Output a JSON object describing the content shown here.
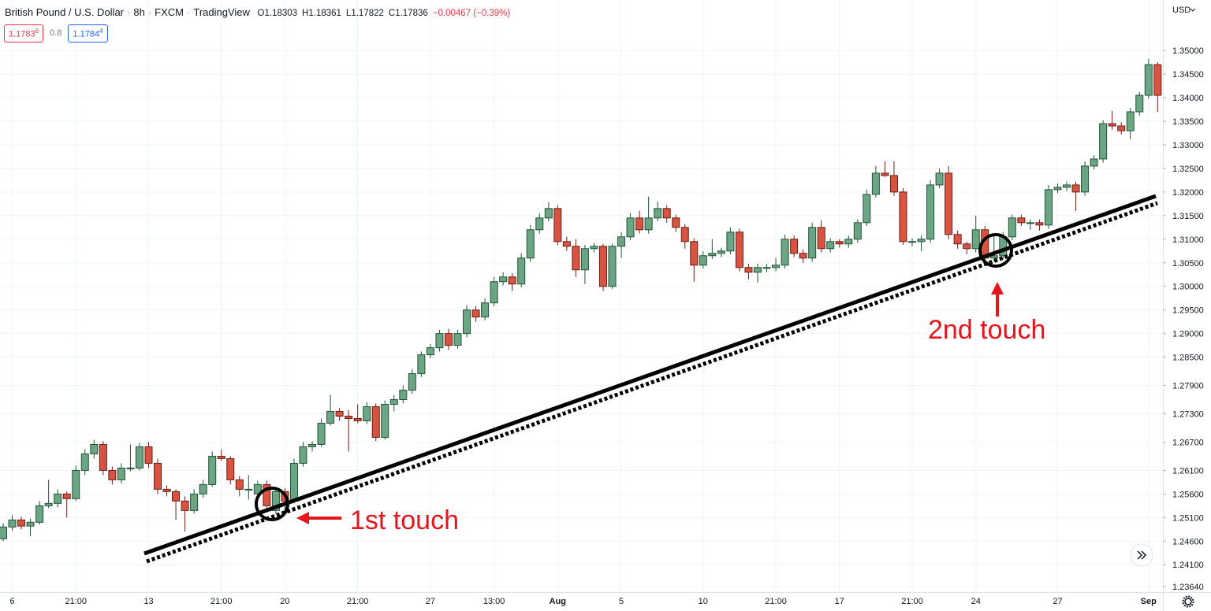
{
  "header": {
    "symbol": "British Pound / U.S. Dollar",
    "interval": "8h",
    "source": "FXCM",
    "platform": "TradingView",
    "open": "O1.18303",
    "high": "H1.18361",
    "low": "L1.17822",
    "close": "C1.17836",
    "change": "−0.00467 (−0.39%)",
    "sell": {
      "price": "1.1783",
      "pip": "6"
    },
    "spread": "0.8",
    "buy": {
      "price": "1.1784",
      "pip": "4"
    },
    "currency": "USD"
  },
  "chart_data": {
    "type": "candlestick",
    "up_color": "#6ba583",
    "down_color": "#d75442",
    "grid": true,
    "annotations": [
      "1st touch",
      "2nd touch"
    ],
    "ylim": [
      1.2352,
      1.3607
    ],
    "yticks": [
      {
        "value": 1.35,
        "label": "1.35000"
      },
      {
        "value": 1.345,
        "label": "1.34500"
      },
      {
        "value": 1.34,
        "label": "1.34000"
      },
      {
        "value": 1.335,
        "label": "1.33500"
      },
      {
        "value": 1.33,
        "label": "1.33000"
      },
      {
        "value": 1.325,
        "label": "1.32500"
      },
      {
        "value": 1.32,
        "label": "1.32000"
      },
      {
        "value": 1.315,
        "label": "1.31500"
      },
      {
        "value": 1.31,
        "label": "1.31000"
      },
      {
        "value": 1.305,
        "label": "1.30500"
      },
      {
        "value": 1.3,
        "label": "1.30000"
      },
      {
        "value": 1.295,
        "label": "1.29500"
      },
      {
        "value": 1.29,
        "label": "1.29000"
      },
      {
        "value": 1.285,
        "label": "1.28500"
      },
      {
        "value": 1.279,
        "label": "1.27900"
      },
      {
        "value": 1.273,
        "label": "1.27300"
      },
      {
        "value": 1.267,
        "label": "1.26700"
      },
      {
        "value": 1.261,
        "label": "1.26100"
      },
      {
        "value": 1.256,
        "label": "1.25600"
      },
      {
        "value": 1.251,
        "label": "1.25100"
      },
      {
        "value": 1.246,
        "label": "1.24600"
      },
      {
        "value": 1.241,
        "label": "1.24100"
      },
      {
        "value": 1.2364,
        "label": "1.23640"
      }
    ],
    "categories": [
      null,
      "6",
      null,
      null,
      null,
      null,
      null,
      null,
      "21:00",
      null,
      null,
      null,
      null,
      null,
      null,
      null,
      "13",
      null,
      null,
      null,
      null,
      null,
      null,
      null,
      "21:00",
      null,
      null,
      null,
      null,
      null,
      null,
      "20",
      null,
      null,
      null,
      null,
      null,
      null,
      null,
      "21:00",
      null,
      null,
      null,
      null,
      null,
      null,
      null,
      "27",
      null,
      null,
      null,
      null,
      null,
      null,
      "13:00",
      null,
      null,
      null,
      null,
      null,
      null,
      "Aug",
      null,
      null,
      null,
      null,
      null,
      null,
      "5",
      null,
      null,
      null,
      null,
      null,
      null,
      null,
      null,
      "10",
      null,
      null,
      null,
      null,
      null,
      null,
      null,
      "21:00",
      null,
      null,
      null,
      null,
      null,
      null,
      "17",
      null,
      null,
      null,
      null,
      null,
      null,
      null,
      "21:00",
      null,
      null,
      null,
      null,
      null,
      null,
      "24",
      null,
      null,
      null,
      null,
      null,
      null,
      null,
      null,
      "27",
      null,
      null,
      null,
      null,
      null,
      null,
      null,
      null,
      null,
      "Sep",
      null
    ],
    "ohlc": [
      [
        1.2465,
        1.2498,
        1.246,
        1.249
      ],
      [
        1.249,
        1.2515,
        1.2482,
        1.2505
      ],
      [
        1.2505,
        1.2512,
        1.2485,
        1.2492
      ],
      [
        1.2492,
        1.2508,
        1.247,
        1.25
      ],
      [
        1.25,
        1.2545,
        1.2495,
        1.2535
      ],
      [
        1.2535,
        1.259,
        1.253,
        1.254
      ],
      [
        1.254,
        1.257,
        1.2532,
        1.256
      ],
      [
        1.256,
        1.2565,
        1.251,
        1.255
      ],
      [
        1.255,
        1.262,
        1.2545,
        1.261
      ],
      [
        1.261,
        1.2655,
        1.26,
        1.2645
      ],
      [
        1.2645,
        1.2675,
        1.2635,
        1.2665
      ],
      [
        1.2665,
        1.2672,
        1.26,
        1.261
      ],
      [
        1.261,
        1.2618,
        1.258,
        1.259
      ],
      [
        1.259,
        1.2625,
        1.2582,
        1.2615
      ],
      [
        1.2615,
        1.2665,
        1.2608,
        1.2615
      ],
      [
        1.2615,
        1.2668,
        1.261,
        1.266
      ],
      [
        1.266,
        1.267,
        1.2615,
        1.2625
      ],
      [
        1.2625,
        1.2635,
        1.256,
        1.257
      ],
      [
        1.257,
        1.2578,
        1.2555,
        1.2565
      ],
      [
        1.2565,
        1.257,
        1.2505,
        1.2545
      ],
      [
        1.2545,
        1.2555,
        1.248,
        1.2525
      ],
      [
        1.2525,
        1.257,
        1.2518,
        1.256
      ],
      [
        1.256,
        1.259,
        1.2552,
        1.258
      ],
      [
        1.258,
        1.265,
        1.2575,
        1.264
      ],
      [
        1.264,
        1.2655,
        1.263,
        1.2635
      ],
      [
        1.2635,
        1.264,
        1.258,
        1.259
      ],
      [
        1.259,
        1.2598,
        1.2555,
        1.257
      ],
      [
        1.257,
        1.26,
        1.2548,
        1.257
      ],
      [
        1.256,
        1.2588,
        1.2552,
        1.258
      ],
      [
        1.258,
        1.2588,
        1.2528,
        1.2535
      ],
      [
        1.2525,
        1.2575,
        1.2518,
        1.2565
      ],
      [
        1.2565,
        1.2572,
        1.252,
        1.2545
      ],
      [
        1.2545,
        1.2635,
        1.254,
        1.2625
      ],
      [
        1.2625,
        1.267,
        1.2618,
        1.266
      ],
      [
        1.266,
        1.2672,
        1.265,
        1.2665
      ],
      [
        1.2665,
        1.272,
        1.266,
        1.271
      ],
      [
        1.271,
        1.277,
        1.2705,
        1.2735
      ],
      [
        1.2735,
        1.2742,
        1.2715,
        1.2725
      ],
      [
        1.2725,
        1.2738,
        1.265,
        1.272
      ],
      [
        1.272,
        1.275,
        1.271,
        1.2715
      ],
      [
        1.2715,
        1.2755,
        1.2708,
        1.2745
      ],
      [
        1.2745,
        1.2752,
        1.2672,
        1.268
      ],
      [
        1.268,
        1.2758,
        1.2675,
        1.275
      ],
      [
        1.275,
        1.277,
        1.2735,
        1.276
      ],
      [
        1.276,
        1.279,
        1.2752,
        1.278
      ],
      [
        1.278,
        1.2825,
        1.2772,
        1.2815
      ],
      [
        1.2815,
        1.2862,
        1.2808,
        1.2855
      ],
      [
        1.2855,
        1.2878,
        1.2848,
        1.287
      ],
      [
        1.287,
        1.2908,
        1.2862,
        1.29
      ],
      [
        1.29,
        1.291,
        1.2865,
        1.2875
      ],
      [
        1.2875,
        1.2908,
        1.2868,
        1.29
      ],
      [
        1.29,
        1.296,
        1.2892,
        1.295
      ],
      [
        1.295,
        1.2958,
        1.2925,
        1.2935
      ],
      [
        1.2935,
        1.2975,
        1.2928,
        1.2965
      ],
      [
        1.2965,
        1.302,
        1.2958,
        1.301
      ],
      [
        1.301,
        1.303,
        1.3002,
        1.302
      ],
      [
        1.302,
        1.3028,
        1.299,
        1.3005
      ],
      [
        1.3005,
        1.307,
        1.2998,
        1.306
      ],
      [
        1.306,
        1.313,
        1.3052,
        1.312
      ],
      [
        1.312,
        1.3155,
        1.3112,
        1.3145
      ],
      [
        1.3145,
        1.3178,
        1.3138,
        1.3165
      ],
      [
        1.3165,
        1.3172,
        1.3088,
        1.3095
      ],
      [
        1.3095,
        1.3105,
        1.3075,
        1.3085
      ],
      [
        1.3085,
        1.31,
        1.302,
        1.3035
      ],
      [
        1.3035,
        1.3088,
        1.3005,
        1.308
      ],
      [
        1.308,
        1.3092,
        1.3072,
        1.3085
      ],
      [
        1.3085,
        1.309,
        1.299,
        1.3
      ],
      [
        1.3,
        1.309,
        1.2995,
        1.3085
      ],
      [
        1.3085,
        1.3115,
        1.306,
        1.3105
      ],
      [
        1.3105,
        1.3155,
        1.3098,
        1.3145
      ],
      [
        1.3145,
        1.316,
        1.3112,
        1.312
      ],
      [
        1.312,
        1.319,
        1.3112,
        1.3145
      ],
      [
        1.3145,
        1.318,
        1.3138,
        1.3165
      ],
      [
        1.3165,
        1.3172,
        1.3135,
        1.3145
      ],
      [
        1.3145,
        1.3152,
        1.3115,
        1.3125
      ],
      [
        1.3125,
        1.3132,
        1.308,
        1.3095
      ],
      [
        1.3095,
        1.3102,
        1.301,
        1.3045
      ],
      [
        1.3045,
        1.3075,
        1.3038,
        1.3065
      ],
      [
        1.3065,
        1.31,
        1.3058,
        1.307
      ],
      [
        1.307,
        1.3082,
        1.3062,
        1.3075
      ],
      [
        1.3075,
        1.3125,
        1.3068,
        1.3115
      ],
      [
        1.3115,
        1.3122,
        1.3032,
        1.304
      ],
      [
        1.304,
        1.3048,
        1.3015,
        1.303
      ],
      [
        1.303,
        1.3048,
        1.3008,
        1.304
      ],
      [
        1.304,
        1.3048,
        1.303,
        1.304
      ],
      [
        1.304,
        1.306,
        1.3032,
        1.3045
      ],
      [
        1.3045,
        1.311,
        1.3038,
        1.31
      ],
      [
        1.31,
        1.3108,
        1.3062,
        1.307
      ],
      [
        1.307,
        1.3078,
        1.305,
        1.306
      ],
      [
        1.306,
        1.3135,
        1.3052,
        1.3125
      ],
      [
        1.3125,
        1.314,
        1.3072,
        1.308
      ],
      [
        1.308,
        1.3102,
        1.3072,
        1.3095
      ],
      [
        1.3095,
        1.31,
        1.3082,
        1.309
      ],
      [
        1.309,
        1.3108,
        1.3082,
        1.31
      ],
      [
        1.31,
        1.3142,
        1.3092,
        1.3135
      ],
      [
        1.3135,
        1.3205,
        1.3128,
        1.3195
      ],
      [
        1.3195,
        1.3255,
        1.3188,
        1.324
      ],
      [
        1.324,
        1.3265,
        1.3232,
        1.3235
      ],
      [
        1.3235,
        1.3265,
        1.3192,
        1.32
      ],
      [
        1.32,
        1.3208,
        1.3088,
        1.3095
      ],
      [
        1.3095,
        1.3102,
        1.3085,
        1.3095
      ],
      [
        1.3095,
        1.3108,
        1.3075,
        1.31
      ],
      [
        1.31,
        1.3225,
        1.3092,
        1.3215
      ],
      [
        1.3215,
        1.325,
        1.3208,
        1.324
      ],
      [
        1.324,
        1.3255,
        1.31,
        1.311
      ],
      [
        1.311,
        1.3118,
        1.308,
        1.309
      ],
      [
        1.309,
        1.3095,
        1.3068,
        1.308
      ],
      [
        1.308,
        1.315,
        1.3072,
        1.312
      ],
      [
        1.312,
        1.3128,
        1.3052,
        1.306
      ],
      [
        1.306,
        1.311,
        1.3052,
        1.3065
      ],
      [
        1.3065,
        1.3115,
        1.3058,
        1.3105
      ],
      [
        1.3105,
        1.3152,
        1.3098,
        1.3145
      ],
      [
        1.3145,
        1.3152,
        1.3128,
        1.3135
      ],
      [
        1.3135,
        1.3142,
        1.312,
        1.3135
      ],
      [
        1.3135,
        1.3142,
        1.3118,
        1.313
      ],
      [
        1.313,
        1.3215,
        1.3122,
        1.3205
      ],
      [
        1.3205,
        1.3218,
        1.3198,
        1.321
      ],
      [
        1.321,
        1.3222,
        1.3202,
        1.3215
      ],
      [
        1.3215,
        1.3222,
        1.316,
        1.32
      ],
      [
        1.32,
        1.3265,
        1.3192,
        1.3255
      ],
      [
        1.3255,
        1.3278,
        1.3248,
        1.327
      ],
      [
        1.327,
        1.3352,
        1.3262,
        1.3345
      ],
      [
        1.3345,
        1.3372,
        1.3332,
        1.334
      ],
      [
        1.334,
        1.3348,
        1.3322,
        1.333
      ],
      [
        1.333,
        1.3378,
        1.3312,
        1.337
      ],
      [
        1.337,
        1.3412,
        1.3362,
        1.3405
      ],
      [
        1.3405,
        1.3482,
        1.3398,
        1.347
      ],
      [
        1.347,
        1.3475,
        1.337,
        1.3405
      ]
    ]
  }
}
